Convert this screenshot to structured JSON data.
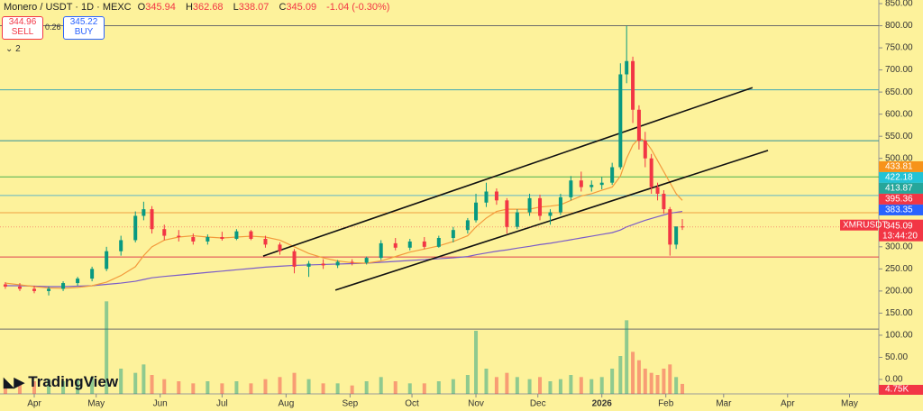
{
  "chart_data": {
    "type": "candlestick",
    "symbol": "Monero / USDT · 1D · MEXC",
    "ohlc_prefixes": [
      "O",
      "H",
      "L",
      "C"
    ],
    "change": "-1.04 (-0.30%)",
    "sell_price": 344.96,
    "sell_label": "SELL",
    "spread": 0.26,
    "buy_price": 345.22,
    "buy_label": "BUY",
    "indicator_count": 2,
    "symbol_tag": "XMRUSDT",
    "countdown": "13:44:20",
    "volume_last_label": "4.75K",
    "logo": "TradingView",
    "up_color": "#089981",
    "down_color": "#f23645",
    "xlim": [
      -16.6,
      409.2
    ],
    "xticks": [
      {
        "value": 0,
        "label": "Apr"
      },
      {
        "value": 30,
        "label": "May"
      },
      {
        "value": 61,
        "label": "Jun"
      },
      {
        "value": 91,
        "label": "Jul"
      },
      {
        "value": 122,
        "label": "Aug"
      },
      {
        "value": 153,
        "label": "Sep"
      },
      {
        "value": 183,
        "label": "Oct"
      },
      {
        "value": 214,
        "label": "Nov"
      },
      {
        "value": 244,
        "label": "Dec"
      },
      {
        "value": 275,
        "label": "2026"
      },
      {
        "value": 306,
        "label": "Feb"
      },
      {
        "value": 334,
        "label": "Mar"
      },
      {
        "value": 365,
        "label": "Apr"
      },
      {
        "value": 395,
        "label": "May"
      }
    ],
    "ylim": [
      0,
      850
    ],
    "yticks": [
      {
        "value": 0,
        "label": "0.00"
      },
      {
        "value": 50,
        "label": "50.00"
      },
      {
        "value": 100,
        "label": "100.00"
      },
      {
        "value": 150,
        "label": "150.00"
      },
      {
        "value": 200,
        "label": "200.00"
      },
      {
        "value": 250,
        "label": "250.00"
      },
      {
        "value": 300,
        "label": "300.00"
      },
      {
        "value": 350,
        "label": "350.00"
      },
      {
        "value": 400,
        "label": "400.00"
      },
      {
        "value": 450,
        "label": "450.00"
      },
      {
        "value": 500,
        "label": "500.00"
      },
      {
        "value": 550,
        "label": "550.00"
      },
      {
        "value": 600,
        "label": "600.00"
      },
      {
        "value": 650,
        "label": "650.00"
      },
      {
        "value": 700,
        "label": "700.00"
      },
      {
        "value": 750,
        "label": "750.00"
      },
      {
        "value": 800,
        "label": "800.00"
      },
      {
        "value": 850,
        "label": "850.00"
      }
    ],
    "volume_lim": [
      0,
      45
    ],
    "candles": {
      "x": [
        -14,
        -7,
        0,
        7,
        14,
        21,
        28,
        35,
        42,
        49,
        53,
        57,
        63,
        70,
        77,
        84,
        91,
        98,
        105,
        112,
        119,
        126,
        133,
        140,
        147,
        154,
        161,
        168,
        175,
        182,
        189,
        196,
        203,
        210,
        214,
        219,
        224,
        229,
        234,
        240,
        245,
        250,
        255,
        260,
        265,
        270,
        275,
        280,
        284,
        287,
        290,
        293,
        296,
        299,
        302,
        305,
        308,
        311,
        314
      ],
      "open": [
        215,
        210,
        205,
        200,
        205,
        218,
        228,
        250,
        290,
        315,
        370,
        385,
        340,
        325,
        322,
        312,
        322,
        318,
        335,
        318,
        305,
        290,
        255,
        262,
        258,
        266,
        264,
        275,
        308,
        298,
        312,
        300,
        320,
        338,
        360,
        400,
        425,
        405,
        345,
        378,
        410,
        370,
        378,
        412,
        450,
        435,
        440,
        445,
        480,
        690,
        720,
        610,
        540,
        500,
        435,
        420,
        385,
        305,
        345.94
      ],
      "high": [
        220,
        218,
        212,
        210,
        222,
        232,
        255,
        300,
        325,
        380,
        402,
        392,
        350,
        338,
        330,
        328,
        334,
        340,
        338,
        325,
        310,
        295,
        268,
        272,
        270,
        272,
        278,
        315,
        320,
        318,
        322,
        325,
        345,
        365,
        420,
        445,
        432,
        410,
        385,
        420,
        418,
        385,
        420,
        460,
        470,
        450,
        458,
        490,
        715,
        800,
        730,
        620,
        560,
        510,
        445,
        428,
        390,
        335,
        362.68
      ],
      "low": [
        205,
        200,
        195,
        190,
        200,
        212,
        222,
        245,
        280,
        310,
        360,
        330,
        315,
        312,
        305,
        305,
        314,
        315,
        315,
        298,
        282,
        240,
        232,
        250,
        252,
        258,
        260,
        270,
        292,
        292,
        295,
        298,
        310,
        330,
        355,
        390,
        395,
        330,
        340,
        370,
        360,
        350,
        372,
        405,
        425,
        425,
        430,
        440,
        475,
        670,
        580,
        520,
        480,
        420,
        405,
        375,
        280,
        295,
        338.07
      ],
      "close": [
        210,
        205,
        200,
        205,
        218,
        228,
        250,
        290,
        315,
        370,
        385,
        340,
        325,
        322,
        312,
        322,
        318,
        335,
        318,
        305,
        290,
        255,
        262,
        258,
        266,
        264,
        275,
        308,
        298,
        312,
        300,
        320,
        338,
        360,
        400,
        425,
        405,
        345,
        378,
        410,
        370,
        378,
        412,
        450,
        435,
        440,
        445,
        480,
        690,
        720,
        610,
        540,
        500,
        435,
        420,
        385,
        305,
        346.13,
        345.09
      ],
      "volume": [
        6,
        5,
        6,
        7,
        6,
        7,
        8,
        44,
        12,
        10,
        14,
        9,
        7,
        6,
        5,
        6,
        5,
        6,
        5,
        7,
        8,
        10,
        7,
        5,
        5,
        4,
        6,
        8,
        6,
        5,
        5,
        6,
        7,
        9,
        30,
        12,
        8,
        10,
        8,
        7,
        8,
        6,
        7,
        9,
        8,
        7,
        8,
        12,
        18,
        35,
        20,
        16,
        12,
        10,
        9,
        12,
        14,
        8,
        4.75
      ]
    },
    "moving_averages": [
      {
        "color": "#7b5cc8",
        "values": [
          212,
          212,
          211,
          210,
          210,
          211,
          212,
          215,
          218,
          222,
          226,
          230,
          233,
          236,
          239,
          242,
          245,
          248,
          251,
          254,
          256,
          258,
          259,
          260,
          261,
          262,
          263,
          265,
          267,
          269,
          271,
          273,
          275,
          278,
          282,
          286,
          290,
          293,
          297,
          301,
          305,
          308,
          312,
          316,
          320,
          324,
          328,
          332,
          338,
          345,
          350,
          355,
          360,
          364,
          368,
          372,
          376,
          378,
          380
        ]
      },
      {
        "color": "#f39a3c",
        "values": [
          218,
          214,
          210,
          207,
          206,
          208,
          212,
          220,
          235,
          255,
          280,
          300,
          315,
          322,
          325,
          322,
          320,
          322,
          324,
          322,
          315,
          300,
          285,
          275,
          268,
          264,
          263,
          268,
          278,
          288,
          295,
          302,
          312,
          325,
          345,
          365,
          380,
          385,
          385,
          385,
          390,
          392,
          395,
          405,
          415,
          420,
          428,
          435,
          460,
          500,
          530,
          545,
          540,
          520,
          495,
          470,
          445,
          420,
          405
        ]
      }
    ],
    "levels": [
      {
        "value": 800,
        "color": "#6b6b6b"
      },
      {
        "value": 655,
        "color": "#3fa9b5"
      },
      {
        "value": 540,
        "color": "#2f8f98"
      },
      {
        "value": 458,
        "color": "#4caf50"
      },
      {
        "value": 416,
        "color": "#5fb6c6"
      },
      {
        "value": 377,
        "color": "#f0a040"
      },
      {
        "value": 277,
        "color": "#e04050"
      },
      {
        "value": 114,
        "color": "#6b6b6b"
      }
    ],
    "trend_lines": [
      {
        "x": [
          110.9,
          348
        ],
        "y": [
          279,
          660
        ]
      },
      {
        "x": [
          145.9,
          355.5
        ],
        "y": [
          202,
          518
        ]
      }
    ],
    "price_labels": [
      {
        "value": 433.81,
        "color": "#f7931a"
      },
      {
        "value": 422.18,
        "color": "#22c3d6"
      },
      {
        "value": 413.87,
        "color": "#26a69a"
      },
      {
        "value": 395.36,
        "color": "#f23645"
      },
      {
        "value": 383.35,
        "color": "#2962ff"
      }
    ]
  }
}
